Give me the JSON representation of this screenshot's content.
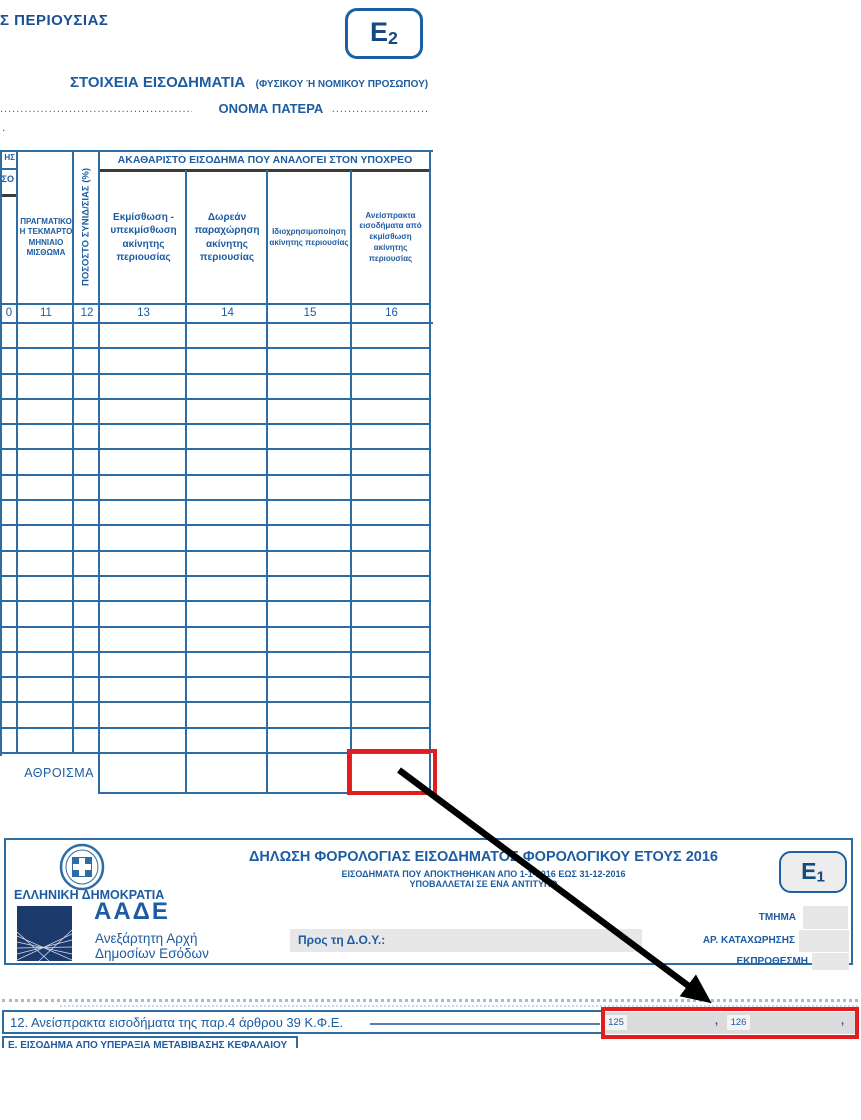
{
  "colors": {
    "form_blue_text": "#1d5ca2",
    "form_blue_border": "#2e6da4",
    "dark_underline": "#3b3b3b",
    "aade_navy": "#1d3a6d",
    "field_gray": "#e7e7e7",
    "highlight_red": "#e21d1d",
    "arrow_black": "#000000"
  },
  "e2": {
    "corner_title": "Σ ΠΕΡΙΟΥΣΙΑΣ",
    "badge_letter": "E",
    "badge_number": "2",
    "section_title": "ΣΤΟΙΧΕΙΑ ΕΙΣΟΔΗΜΑΤΙΑ",
    "section_title_note": "(ΦΥΣΙΚΟΥ Ή ΝΟΜΙΚΟΥ ΠΡΟΣΩΠΟΥ)",
    "left_dots": "..................................................................................",
    "father_name_label": "ΟΝΟΜΑ ΠΑΤΕΡΑ",
    "father_name_dots": "........................",
    "stray_dot": ".",
    "table": {
      "left_fragment_top": "ΗΣ",
      "left_fragment_mid": "ΣΟ",
      "group_header": "ΑΚΑΘΑΡΙΣΤΟ ΕΙΣΟΔΗΜΑ ΠΟΥ ΑΝΑΛΟΓΕΙ ΣΤΟΝ ΥΠΟΧΡΕΟ",
      "col_11_header": "ΠΡΑΓΜΑΤΙΚΟ Η ΤΕΚΜΑΡΤΟ ΜΗΝΙΑΙΟ ΜΙΣΘΩΜΑ",
      "col_12_header": "ΠΟΣΟΣΤΟ ΣΥΝΙΔ/ΣΙΑΣ (%)",
      "col_13_header": "Εκμίσθωση - υπεκμίσθωση ακίνητης περιουσίας",
      "col_14_header": "Δωρεάν παραχώρηση ακίνητης περιουσίας",
      "col_15_header": "Ιδιοχρησιμοποίηση ακίνητης περιουσίας",
      "col_16_header": "Ανείσπρακτα εισοδήματα από εκμίσθωση ακίνητης περιουσίας",
      "column_numbers": [
        "0",
        "11",
        "12",
        "13",
        "14",
        "15",
        "16"
      ],
      "body_row_count": 17,
      "sum_label": "ΑΘΡΟΙΣΜΑ"
    }
  },
  "e1": {
    "republic_label": "ΕΛΛΗΝΙΚΗ ΔΗΜΟΚΡΑΤΙΑ",
    "aade_acronym": "ΑΑΔΕ",
    "aade_name_line1": "Ανεξάρτητη Αρχή",
    "aade_name_line2": "Δημοσίων Εσόδων",
    "title": "ΔΗΛΩΣΗ ΦΟΡΟΛΟΓΙΑΣ ΕΙΣΟΔΗΜΑΤΟΣ ΦΟΡΟΛΟΓΙΚΟΥ ΕΤΟΥΣ 2016",
    "subtitle1": "ΕΙΣΟΔΗΜΑΤΑ ΠΟΥ ΑΠΟΚΤΗΘΗΚΑΝ ΑΠΟ 1-1-2016 ΕΩΣ 31-12-2016",
    "subtitle2": "ΥΠΟΒΑΛΛΕΤΑΙ ΣΕ ΕΝΑ ΑΝΤΙΤΥΠΟ",
    "badge_letter": "E",
    "badge_number": "1",
    "to_doy_label": "Προς τη Δ.Ο.Υ.:",
    "tmima_label": "ΤΜΗΜΑ",
    "registration_label": "ΑΡ. ΚΑΤΑΧΩΡΗΣΗΣ",
    "late_label": "ΕΚΠΡΟΘΕΣΜΗ"
  },
  "line12": {
    "text": "12. Ανείσπρακτα εισοδήματα της παρ.4 άρθρου 39 Κ.Φ.Ε.",
    "field_code_1": "125",
    "field_code_2": "126",
    "comma": ",",
    "next_section_fragment": "Ε. ΕΙΣΟΔΗΜΑ ΑΠΟ ΥΠΕΡΑΞΙΑ ΜΕΤΑΒΙΒΑΣΗΣ ΚΕΦΑΛΑΙΟΥ"
  }
}
